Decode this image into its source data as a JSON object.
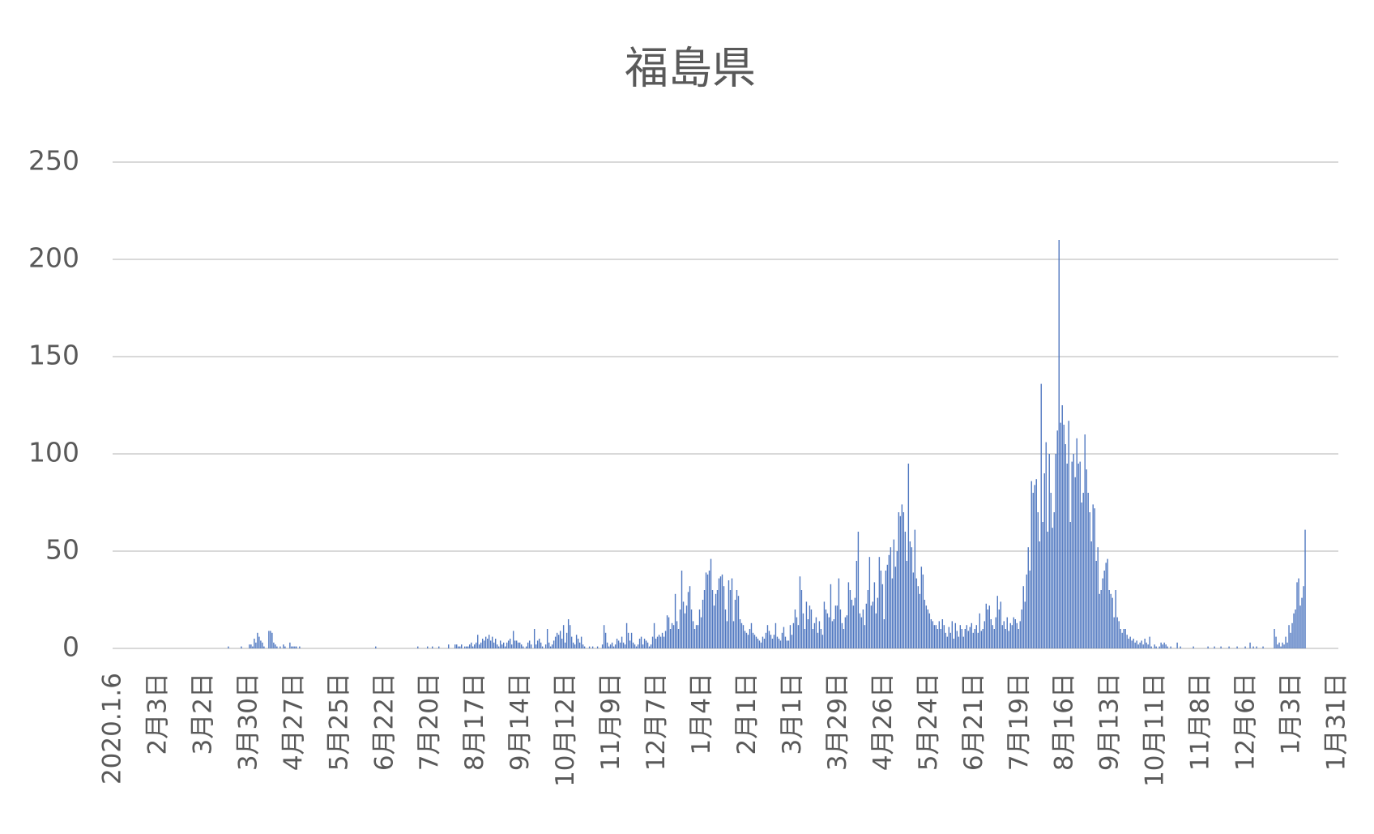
{
  "chart_data": {
    "type": "bar",
    "title": "福島県",
    "color": "#4f77c0",
    "grid": true,
    "ylim": [
      0,
      250
    ],
    "yticks": [
      0,
      50,
      100,
      150,
      200,
      250
    ],
    "categories": [
      "2020.1.6",
      null,
      null,
      null,
      null,
      null,
      null,
      null,
      null,
      null,
      null,
      null,
      null,
      null,
      null,
      null,
      null,
      null,
      null,
      null,
      null,
      null,
      null,
      null,
      null,
      null,
      null,
      null,
      "2月3日",
      null,
      null,
      null,
      null,
      null,
      null,
      null,
      null,
      null,
      null,
      null,
      null,
      null,
      null,
      null,
      null,
      null,
      null,
      null,
      null,
      null,
      null,
      null,
      null,
      null,
      null,
      null,
      "3月2日",
      null,
      null,
      null,
      null,
      null,
      null,
      null,
      null,
      null,
      null,
      null,
      null,
      null,
      null,
      null,
      null,
      null,
      null,
      null,
      null,
      null,
      null,
      null,
      null,
      null,
      null,
      null,
      "3月30日",
      null,
      null,
      null,
      null,
      null,
      null,
      null,
      null,
      null,
      null,
      null,
      null,
      null,
      null,
      null,
      null,
      null,
      null,
      null,
      null,
      null,
      null,
      null,
      null,
      null,
      null,
      null,
      "4月27日",
      null,
      null,
      null,
      null,
      null,
      null,
      null,
      null,
      null,
      null,
      null,
      null,
      null,
      null,
      null,
      null,
      null,
      null,
      null,
      null,
      null,
      null,
      null,
      null,
      null,
      null,
      null,
      "5月25日",
      null,
      null,
      null,
      null,
      null,
      null,
      null,
      null,
      null,
      null,
      null,
      null,
      null,
      null,
      null,
      null,
      null,
      null,
      null,
      null,
      null,
      null,
      null,
      null,
      null,
      null,
      null,
      "6月22日",
      null,
      null,
      null,
      null,
      null,
      null,
      null,
      null,
      null,
      null,
      null,
      null,
      null,
      null,
      null,
      null,
      null,
      null,
      null,
      null,
      null,
      null,
      null,
      null,
      null,
      null,
      null,
      "7月20日",
      null,
      null,
      null,
      null,
      null,
      null,
      null,
      null,
      null,
      null,
      null,
      null,
      null,
      null,
      null,
      null,
      null,
      null,
      null,
      null,
      null,
      null,
      null,
      null,
      null,
      null,
      null,
      "8月17日",
      null,
      null,
      null,
      null,
      null,
      null,
      null,
      null,
      null,
      null,
      null,
      null,
      null,
      null,
      null,
      null,
      null,
      null,
      null,
      null,
      null,
      null,
      null,
      null,
      null,
      null,
      null,
      "9月14日",
      null,
      null,
      null,
      null,
      null,
      null,
      null,
      null,
      null,
      null,
      null,
      null,
      null,
      null,
      null,
      null,
      null,
      null,
      null,
      null,
      null,
      null,
      null,
      null,
      null,
      null,
      null,
      "10月12日",
      null,
      null,
      null,
      null,
      null,
      null,
      null,
      null,
      null,
      null,
      null,
      null,
      null,
      null,
      null,
      null,
      null,
      null,
      null,
      null,
      null,
      null,
      null,
      null,
      null,
      null,
      null,
      "11月9日",
      null,
      null,
      null,
      null,
      null,
      null,
      null,
      null,
      null,
      null,
      null,
      null,
      null,
      null,
      null,
      null,
      null,
      null,
      null,
      null,
      null,
      null,
      null,
      null,
      null,
      null,
      null,
      "12月7日",
      null,
      null,
      null,
      null,
      null,
      null,
      null,
      null,
      null,
      null,
      null,
      null,
      null,
      null,
      null,
      null,
      null,
      null,
      null,
      null,
      null,
      null,
      null,
      null,
      null,
      null,
      null,
      "1月4日",
      null,
      null,
      null,
      null,
      null,
      null,
      null,
      null,
      null,
      null,
      null,
      null,
      null,
      null,
      null,
      null,
      null,
      null,
      null,
      null,
      null,
      null,
      null,
      null,
      null,
      null,
      null,
      "2月1日",
      null,
      null,
      null,
      null,
      null,
      null,
      null,
      null,
      null,
      null,
      null,
      null,
      null,
      null,
      null,
      null,
      null,
      null,
      null,
      null,
      null,
      null,
      null,
      null,
      null,
      null,
      null,
      "3月1日",
      null,
      null,
      null,
      null,
      null,
      null,
      null,
      null,
      null,
      null,
      null,
      null,
      null,
      null,
      null,
      null,
      null,
      null,
      null,
      null,
      null,
      null,
      null,
      null,
      null,
      null,
      null,
      "3月29日",
      null,
      null,
      null,
      null,
      null,
      null,
      null,
      null,
      null,
      null,
      null,
      null,
      null,
      null,
      null,
      null,
      null,
      null,
      null,
      null,
      null,
      null,
      null,
      null,
      null,
      null,
      null,
      "4月26日",
      null,
      null,
      null,
      null,
      null,
      null,
      null,
      null,
      null,
      null,
      null,
      null,
      null,
      null,
      null,
      null,
      null,
      null,
      null,
      null,
      null,
      null,
      null,
      null,
      null,
      null,
      null,
      "5月24日",
      null,
      null,
      null,
      null,
      null,
      null,
      null,
      null,
      null,
      null,
      null,
      null,
      null,
      null,
      null,
      null,
      null,
      null,
      null,
      null,
      null,
      null,
      null,
      null,
      null,
      null,
      null,
      "6月21日",
      null,
      null,
      null,
      null,
      null,
      null,
      null,
      null,
      null,
      null,
      null,
      null,
      null,
      null,
      null,
      null,
      null,
      null,
      null,
      null,
      null,
      null,
      null,
      null,
      null,
      null,
      null,
      "7月19日",
      null,
      null,
      null,
      null,
      null,
      null,
      null,
      null,
      null,
      null,
      null,
      null,
      null,
      null,
      null,
      null,
      null,
      null,
      null,
      null,
      null,
      null,
      null,
      null,
      null,
      null,
      null,
      "8月16日",
      null,
      null,
      null,
      null,
      null,
      null,
      null,
      null,
      null,
      null,
      null,
      null,
      null,
      null,
      null,
      null,
      null,
      null,
      null,
      null,
      null,
      null,
      null,
      null,
      null,
      null,
      null,
      "9月13日",
      null,
      null,
      null,
      null,
      null,
      null,
      null,
      null,
      null,
      null,
      null,
      null,
      null,
      null,
      null,
      null,
      null,
      null,
      null,
      null,
      null,
      null,
      null,
      null,
      null,
      null,
      null,
      "10月11日",
      null,
      null,
      null,
      null,
      null,
      null,
      null,
      null,
      null,
      null,
      null,
      null,
      null,
      null,
      null,
      null,
      null,
      null,
      null,
      null,
      null,
      null,
      null,
      null,
      null,
      null,
      null,
      "11月8日",
      null,
      null,
      null,
      null,
      null,
      null,
      null,
      null,
      null,
      null,
      null,
      null,
      null,
      null,
      null,
      null,
      null,
      null,
      null,
      null,
      null,
      null,
      null,
      null,
      null,
      null,
      null,
      "12月6日",
      null,
      null,
      null,
      null,
      null,
      null,
      null,
      null,
      null,
      null,
      null,
      null,
      null,
      null,
      null,
      null,
      null,
      null,
      null,
      null,
      null,
      null,
      null,
      null,
      null,
      null,
      null,
      "1月3日",
      null,
      null,
      null,
      null,
      null,
      null,
      null,
      null,
      null,
      null,
      null,
      null,
      null,
      null,
      null,
      null,
      null,
      null,
      null,
      null,
      null,
      null,
      null,
      null,
      null,
      null,
      null,
      "1月31日"
    ],
    "values": [
      0,
      0,
      0,
      0,
      0,
      0,
      0,
      0,
      0,
      0,
      0,
      0,
      0,
      0,
      0,
      0,
      0,
      0,
      0,
      0,
      0,
      0,
      0,
      0,
      0,
      0,
      0,
      0,
      0,
      0,
      0,
      0,
      0,
      0,
      0,
      0,
      0,
      0,
      0,
      0,
      0,
      0,
      0,
      0,
      0,
      0,
      0,
      0,
      0,
      0,
      0,
      0,
      0,
      0,
      0,
      0,
      0,
      0,
      0,
      0,
      0,
      0,
      0,
      0,
      0,
      0,
      0,
      0,
      0,
      0,
      0,
      1,
      0,
      0,
      0,
      0,
      0,
      0,
      0,
      1,
      0,
      0,
      0,
      0,
      2,
      2,
      1,
      5,
      3,
      8,
      6,
      4,
      3,
      1,
      0,
      0,
      9,
      9,
      8,
      3,
      2,
      1,
      0,
      1,
      0,
      2,
      1,
      0,
      0,
      3,
      1,
      1,
      1,
      1,
      0,
      1,
      0,
      0,
      0,
      0,
      0,
      0,
      0,
      0,
      0,
      0,
      0,
      0,
      0,
      0,
      0,
      0,
      0,
      0,
      0,
      0,
      0,
      0,
      0,
      0,
      0,
      0,
      0,
      0,
      0,
      0,
      0,
      0,
      0,
      0,
      0,
      0,
      0,
      0,
      0,
      0,
      0,
      0,
      0,
      0,
      0,
      0,
      1,
      0,
      0,
      0,
      0,
      0,
      0,
      0,
      0,
      0,
      0,
      0,
      0,
      0,
      0,
      0,
      0,
      0,
      0,
      0,
      0,
      0,
      0,
      0,
      0,
      0,
      1,
      0,
      0,
      0,
      0,
      0,
      1,
      0,
      0,
      1,
      0,
      0,
      0,
      1,
      0,
      0,
      0,
      0,
      0,
      2,
      0,
      0,
      0,
      2,
      2,
      1,
      1,
      2,
      0,
      1,
      1,
      1,
      2,
      3,
      1,
      2,
      3,
      7,
      2,
      3,
      5,
      4,
      6,
      5,
      7,
      4,
      6,
      3,
      5,
      2,
      1,
      4,
      2,
      3,
      1,
      3,
      4,
      5,
      2,
      9,
      4,
      4,
      3,
      3,
      2,
      1,
      0,
      1,
      3,
      4,
      2,
      0,
      10,
      2,
      4,
      5,
      3,
      1,
      0,
      2,
      10,
      3,
      1,
      2,
      4,
      6,
      8,
      7,
      9,
      5,
      12,
      3,
      8,
      15,
      12,
      6,
      3,
      2,
      7,
      5,
      3,
      6,
      2,
      1,
      0,
      0,
      1,
      0,
      1,
      0,
      0,
      1,
      0,
      0,
      2,
      12,
      8,
      3,
      1,
      2,
      3,
      1,
      2,
      5,
      4,
      3,
      6,
      3,
      2,
      13,
      8,
      4,
      8,
      3,
      2,
      1,
      2,
      5,
      6,
      2,
      5,
      4,
      3,
      1,
      2,
      6,
      13,
      5,
      6,
      7,
      6,
      8,
      6,
      9,
      17,
      16,
      10,
      13,
      12,
      28,
      14,
      10,
      20,
      40,
      24,
      18,
      22,
      29,
      32,
      20,
      14,
      10,
      12,
      12,
      20,
      16,
      25,
      30,
      39,
      38,
      40,
      46,
      30,
      22,
      28,
      30,
      36,
      37,
      38,
      32,
      20,
      14,
      35,
      30,
      36,
      14,
      25,
      30,
      27,
      15,
      13,
      12,
      9,
      8,
      7,
      10,
      13,
      8,
      7,
      6,
      5,
      4,
      3,
      6,
      5,
      8,
      12,
      9,
      7,
      5,
      7,
      13,
      6,
      5,
      4,
      8,
      11,
      6,
      4,
      4,
      12,
      7,
      13,
      20,
      16,
      12,
      37,
      30,
      18,
      10,
      24,
      15,
      22,
      20,
      10,
      13,
      16,
      8,
      14,
      10,
      7,
      24,
      20,
      18,
      16,
      33,
      14,
      15,
      22,
      22,
      36,
      20,
      13,
      10,
      16,
      17,
      34,
      30,
      25,
      22,
      26,
      45,
      60,
      18,
      16,
      20,
      12,
      23,
      30,
      47,
      22,
      24,
      34,
      18,
      26,
      47,
      40,
      33,
      15,
      40,
      43,
      48,
      52,
      36,
      56,
      42,
      50,
      70,
      68,
      74,
      70,
      60,
      45,
      95,
      55,
      52,
      39,
      61,
      36,
      32,
      28,
      42,
      38,
      25,
      22,
      20,
      18,
      15,
      14,
      12,
      12,
      10,
      14,
      10,
      15,
      12,
      8,
      6,
      11,
      8,
      14,
      5,
      13,
      9,
      6,
      12,
      10,
      6,
      10,
      12,
      9,
      11,
      13,
      8,
      10,
      12,
      8,
      18,
      9,
      10,
      14,
      23,
      20,
      22,
      15,
      12,
      10,
      16,
      27,
      20,
      24,
      12,
      14,
      10,
      16,
      9,
      13,
      12,
      16,
      15,
      13,
      10,
      14,
      20,
      32,
      24,
      38,
      52,
      40,
      86,
      80,
      84,
      87,
      70,
      55,
      136,
      65,
      90,
      106,
      60,
      100,
      80,
      62,
      70,
      100,
      112,
      210,
      116,
      125,
      115,
      105,
      95,
      117,
      65,
      96,
      100,
      88,
      108,
      95,
      96,
      75,
      80,
      110,
      92,
      80,
      70,
      55,
      74,
      72,
      45,
      52,
      28,
      30,
      36,
      40,
      44,
      46,
      30,
      28,
      26,
      16,
      30,
      16,
      14,
      10,
      8,
      10,
      10,
      7,
      5,
      6,
      4,
      5,
      3,
      4,
      2,
      3,
      4,
      2,
      5,
      3,
      2,
      6,
      1,
      0,
      2,
      1,
      0,
      1,
      3,
      2,
      3,
      2,
      1,
      0,
      1,
      0,
      0,
      0,
      3,
      0,
      1,
      0,
      0,
      0,
      0,
      0,
      0,
      0,
      1,
      0,
      0,
      0,
      0,
      0,
      0,
      0,
      0,
      1,
      0,
      0,
      0,
      1,
      0,
      0,
      0,
      1,
      0,
      0,
      0,
      0,
      1,
      0,
      0,
      0,
      0,
      1,
      0,
      0,
      0,
      0,
      1,
      0,
      0,
      3,
      0,
      1,
      0,
      1,
      0,
      0,
      0,
      1,
      0,
      0,
      0,
      0,
      0,
      0,
      10,
      6,
      2,
      3,
      1,
      3,
      2,
      6,
      3,
      12,
      8,
      13,
      18,
      20,
      34,
      36,
      22,
      26,
      32,
      61,
      null,
      null,
      null,
      null,
      null,
      null,
      null,
      null,
      null,
      null,
      null,
      null,
      null,
      null,
      null,
      null,
      null,
      null,
      null,
      null
    ]
  }
}
